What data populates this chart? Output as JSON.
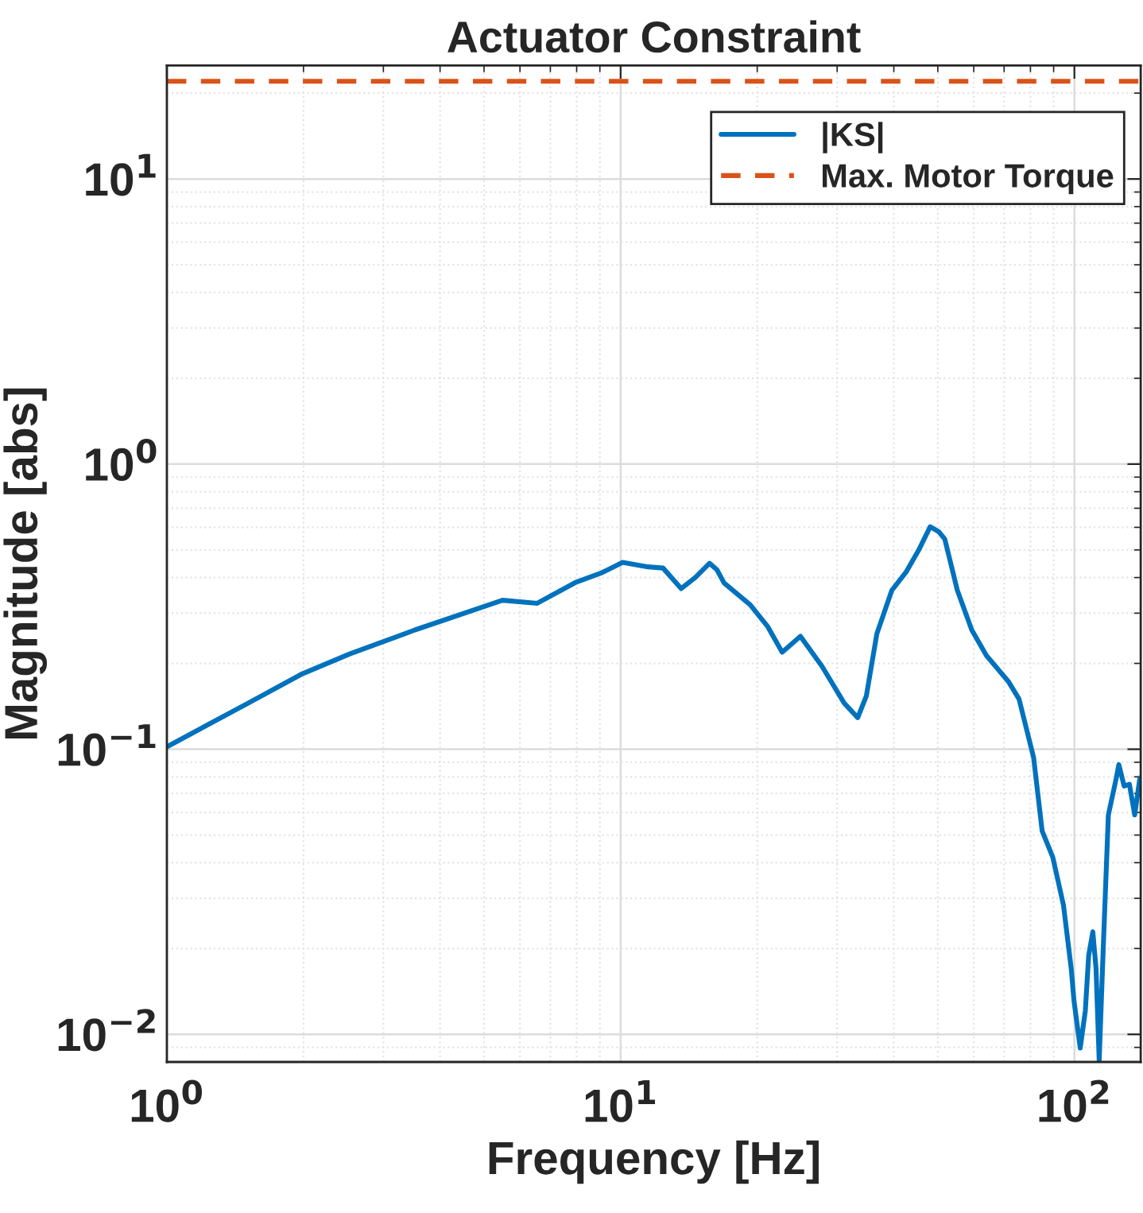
{
  "chart_data": {
    "type": "line",
    "title": "Actuator Constraint",
    "xlabel": "Frequency [Hz]",
    "ylabel": "Magnitude [abs]",
    "log": "xy",
    "grid": true,
    "legend": "top right",
    "xlim": [
      1,
      140
    ],
    "ylim": [
      0.008,
      25
    ],
    "xticks": [
      {
        "value": 1,
        "label": "10$^{0}$"
      },
      {
        "value": 10,
        "label": "10$^{1}$"
      },
      {
        "value": 100,
        "label": "10$^{2}$"
      }
    ],
    "yticks": [
      {
        "value": 0.01,
        "label": "10$^{−2}$"
      },
      {
        "value": 0.1,
        "label": "10$^{−1}$"
      },
      {
        "value": 1,
        "label": "10$^{0}$"
      },
      {
        "value": 10,
        "label": "10$^{1}$"
      }
    ],
    "series": [
      {
        "name": "|KS|",
        "color": "#0072bd",
        "line_style": "solid",
        "x": [
          1,
          1.51,
          1.99,
          2.53,
          3.52,
          5.49,
          6.55,
          7.94,
          9.03,
          10.1,
          11.5,
          12.4,
          13.6,
          14.6,
          15.7,
          16.3,
          16.9,
          19.3,
          21.1,
          22.7,
          24.9,
          27.8,
          31.1,
          33.3,
          34.8,
          36.7,
          39.6,
          42.6,
          45.4,
          48.1,
          50.3,
          51.8,
          55.2,
          59.4,
          64.0,
          71.5,
          75.5,
          81.3,
          84.9,
          89.6,
          94.6,
          98.4,
          99.8,
          103,
          105.7,
          107.5,
          109.8,
          111.6,
          113.4,
          115.9,
          118.8,
          123.7,
          125.3,
          128.7,
          132.2,
          135.8,
          139.4
        ],
        "values": [
          0.102,
          0.145,
          0.184,
          0.216,
          0.262,
          0.333,
          0.325,
          0.384,
          0.414,
          0.452,
          0.436,
          0.432,
          0.366,
          0.4,
          0.449,
          0.426,
          0.383,
          0.321,
          0.269,
          0.219,
          0.249,
          0.195,
          0.145,
          0.129,
          0.154,
          0.254,
          0.361,
          0.419,
          0.5,
          0.603,
          0.578,
          0.546,
          0.361,
          0.262,
          0.213,
          0.173,
          0.15,
          0.0935,
          0.0517,
          0.0418,
          0.0284,
          0.017,
          0.0131,
          0.00895,
          0.0121,
          0.0189,
          0.0229,
          0.017,
          0.0081,
          0.0211,
          0.0588,
          0.0793,
          0.0883,
          0.0743,
          0.0753,
          0.0588,
          0.0793
        ]
      }
    ],
    "ref_lines": [
      {
        "axis": "y",
        "value": 22,
        "label": "Max. Motor Torque",
        "color": "#d95319",
        "line_style": "dashed"
      }
    ]
  }
}
